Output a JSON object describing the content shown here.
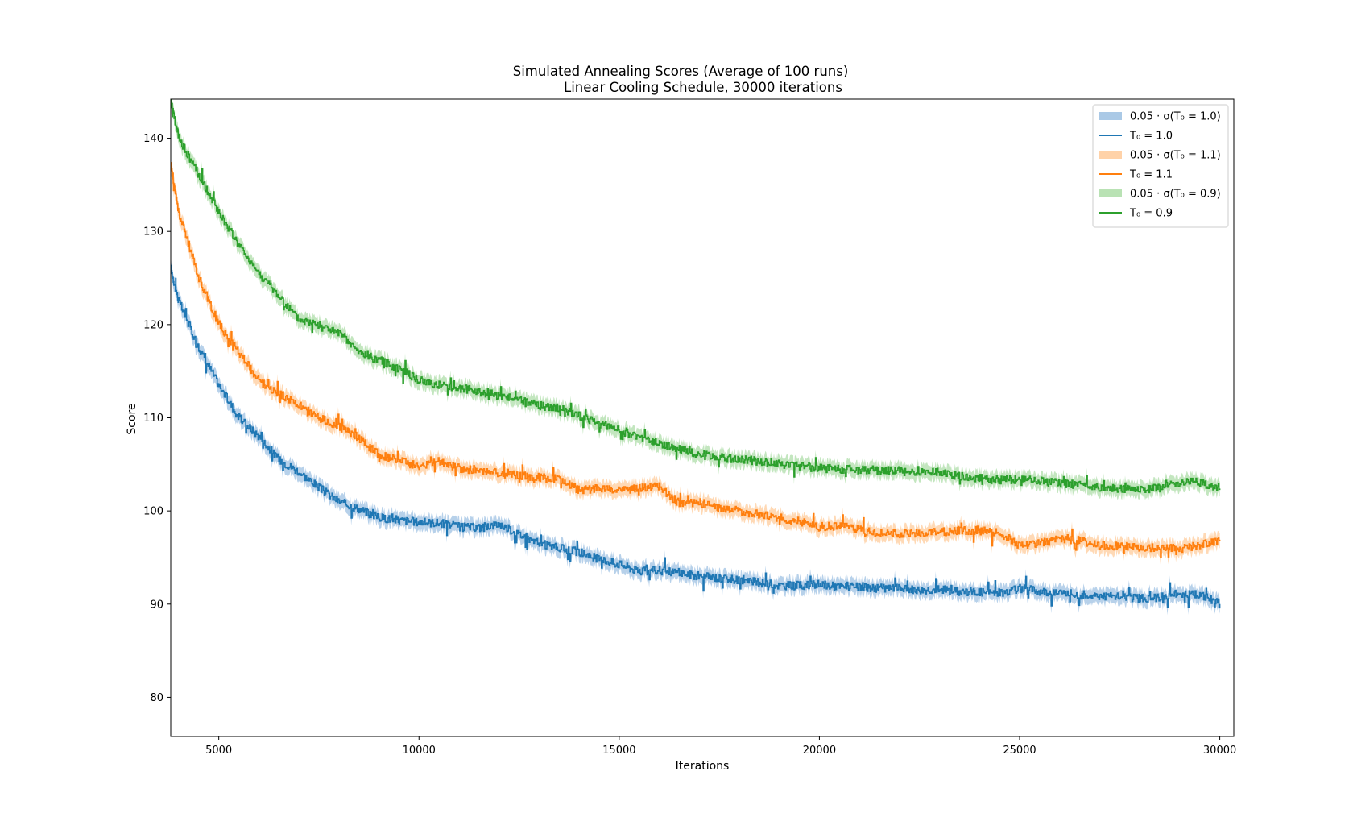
{
  "chart_data": {
    "type": "line",
    "title": "Simulated Annealing Scores (Average of 100 runs)",
    "subtitle": "Linear Cooling Schedule, 30000 iterations",
    "xlabel": "Iterations",
    "ylabel": "Score",
    "xlim": [
      3800,
      30350
    ],
    "ylim": [
      75.8,
      144.2
    ],
    "xticks": [
      5000,
      10000,
      15000,
      20000,
      25000,
      30000
    ],
    "yticks": [
      80,
      90,
      100,
      110,
      120,
      130,
      140
    ],
    "grid": false,
    "legend_position": "top-right",
    "legend": [
      {
        "label": "0.05 · σ(T₀ = 1.0)",
        "kind": "band",
        "series": 0
      },
      {
        "label": "T₀ = 1.0",
        "kind": "line",
        "series": 0
      },
      {
        "label": "0.05 · σ(T₀ = 1.1)",
        "kind": "band",
        "series": 1
      },
      {
        "label": "T₀ = 1.1",
        "kind": "line",
        "series": 1
      },
      {
        "label": "0.05 · σ(T₀ = 0.9)",
        "kind": "band",
        "series": 2
      },
      {
        "label": "T₀ = 0.9",
        "kind": "line",
        "series": 2
      }
    ],
    "series": [
      {
        "name": "T₀ = 1.0",
        "color": "#1f77b4",
        "band_color": "#aac9e6",
        "band_halfwidth": 0.8,
        "x": [
          3800,
          4000,
          4500,
          5000,
          5500,
          6000,
          6500,
          7000,
          7500,
          8000,
          8500,
          9000,
          9500,
          10000,
          10500,
          11000,
          11500,
          12000,
          12500,
          13000,
          13500,
          14000,
          14500,
          15000,
          15500,
          16000,
          16500,
          17000,
          17500,
          18000,
          18500,
          19000,
          19500,
          20000,
          20500,
          21000,
          21500,
          22000,
          22500,
          23000,
          23500,
          24000,
          24500,
          25000,
          25500,
          26000,
          26500,
          27000,
          27500,
          28000,
          28500,
          29000,
          29500,
          30000
        ],
        "y": [
          126,
          122.5,
          117.5,
          113.5,
          110,
          108,
          105.5,
          104.2,
          102.5,
          101,
          100.2,
          99.3,
          99,
          98.8,
          98.7,
          98.3,
          98.2,
          98.6,
          97.5,
          96.5,
          96,
          95.6,
          94.8,
          94.3,
          93.5,
          93.6,
          93.4,
          93,
          92.8,
          92.6,
          92.3,
          92,
          92,
          92.1,
          91.9,
          91.8,
          91.7,
          91.7,
          91.5,
          91.6,
          91.4,
          91.3,
          91.2,
          91.7,
          91.4,
          91.2,
          91.0,
          90.9,
          90.8,
          90.6,
          90.7,
          91.2,
          91.0,
          90.0
        ]
      },
      {
        "name": "T₀ = 1.1",
        "color": "#ff7f0e",
        "band_color": "#ffd2a8",
        "band_halfwidth": 0.8,
        "x": [
          3800,
          4000,
          4500,
          5000,
          5500,
          6000,
          6500,
          7000,
          7500,
          8000,
          8500,
          9000,
          9500,
          10000,
          10500,
          11000,
          11500,
          12000,
          12500,
          13000,
          13500,
          14000,
          14500,
          15000,
          15500,
          16000,
          16500,
          17000,
          17500,
          18000,
          18500,
          19000,
          19500,
          20000,
          20500,
          21000,
          21500,
          22000,
          22500,
          23000,
          23500,
          24000,
          24500,
          25000,
          25500,
          26000,
          26500,
          27000,
          27500,
          28000,
          28500,
          29000,
          29500,
          30000
        ],
        "y": [
          137,
          132,
          125,
          120,
          117,
          114,
          112.6,
          111.3,
          110,
          109,
          107.8,
          106,
          105.4,
          104.8,
          105.3,
          104.6,
          104.4,
          104.0,
          103.8,
          103.6,
          103.4,
          102.2,
          102.5,
          102.2,
          102.5,
          102.6,
          100.8,
          100.9,
          100.3,
          100.0,
          99.6,
          99.2,
          98.9,
          98.3,
          98.4,
          98.0,
          97.6,
          97.5,
          97.6,
          97.7,
          97.9,
          97.9,
          97.6,
          96.3,
          96.6,
          96.9,
          96.8,
          96.3,
          96.2,
          96.0,
          96.1,
          95.9,
          96.3,
          96.8
        ]
      },
      {
        "name": "T₀ = 0.9",
        "color": "#2ca02c",
        "band_color": "#b9e2b4",
        "band_halfwidth": 0.8,
        "x": [
          3800,
          4000,
          4500,
          5000,
          5500,
          6000,
          6500,
          7000,
          7500,
          8000,
          8500,
          9000,
          9500,
          10000,
          10500,
          11000,
          11500,
          12000,
          12500,
          13000,
          13500,
          14000,
          14500,
          15000,
          15500,
          16000,
          16500,
          17000,
          17500,
          18000,
          18500,
          19000,
          19500,
          20000,
          20500,
          21000,
          21500,
          22000,
          22500,
          23000,
          23500,
          24000,
          24500,
          25000,
          25500,
          26000,
          26500,
          27000,
          27500,
          28000,
          28500,
          29000,
          29500,
          30000
        ],
        "y": [
          144,
          140,
          136,
          132,
          128.5,
          125.5,
          123,
          120.5,
          120,
          119,
          117,
          116.2,
          115.3,
          114,
          113.5,
          113.2,
          112.8,
          112.4,
          111.9,
          111.3,
          111.0,
          110.2,
          109.4,
          108.6,
          107.9,
          107.2,
          106.6,
          106.1,
          105.7,
          105.6,
          105.3,
          105.1,
          104.8,
          104.6,
          104.5,
          104.4,
          104.4,
          104.3,
          104.1,
          104.2,
          103.7,
          103.5,
          103.3,
          103.4,
          103.2,
          103.0,
          102.8,
          102.5,
          102.4,
          102.3,
          102.5,
          103.0,
          103.1,
          102.4
        ]
      }
    ]
  }
}
